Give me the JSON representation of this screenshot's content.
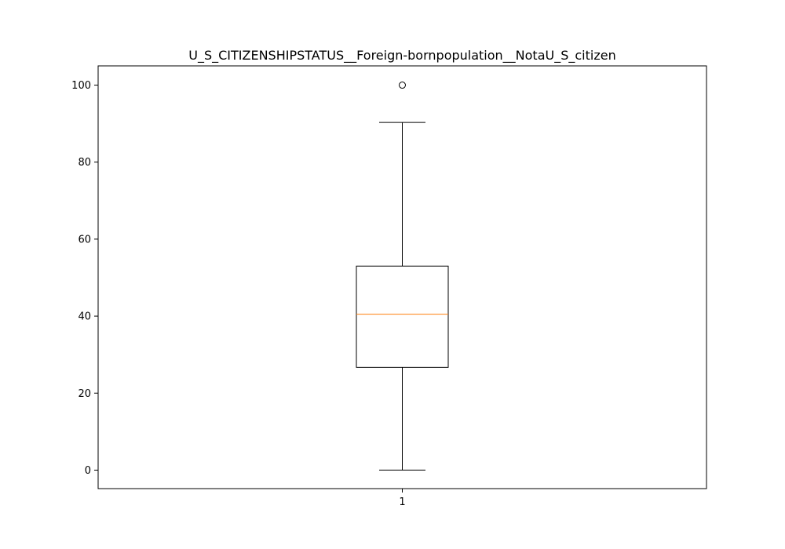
{
  "chart_data": {
    "type": "box",
    "title": "U_S_CITIZENSHIPSTATUS__Foreign-bornpopulation__NotaU_S_citizen",
    "xlabel": "",
    "ylabel": "",
    "categories": [
      "1"
    ],
    "y_ticks": [
      0,
      20,
      40,
      60,
      80,
      100
    ],
    "ylim": [
      -4.8,
      105
    ],
    "grid": false,
    "boxes": [
      {
        "category": "1",
        "whisker_low": 0,
        "q1": 26.7,
        "median": 40.5,
        "q3": 53.0,
        "whisker_high": 90.3,
        "outliers": [
          100
        ]
      }
    ],
    "colors": {
      "box": "#000000",
      "median": "#ff7f0e",
      "axes": "#000000",
      "background": "#ffffff"
    }
  }
}
